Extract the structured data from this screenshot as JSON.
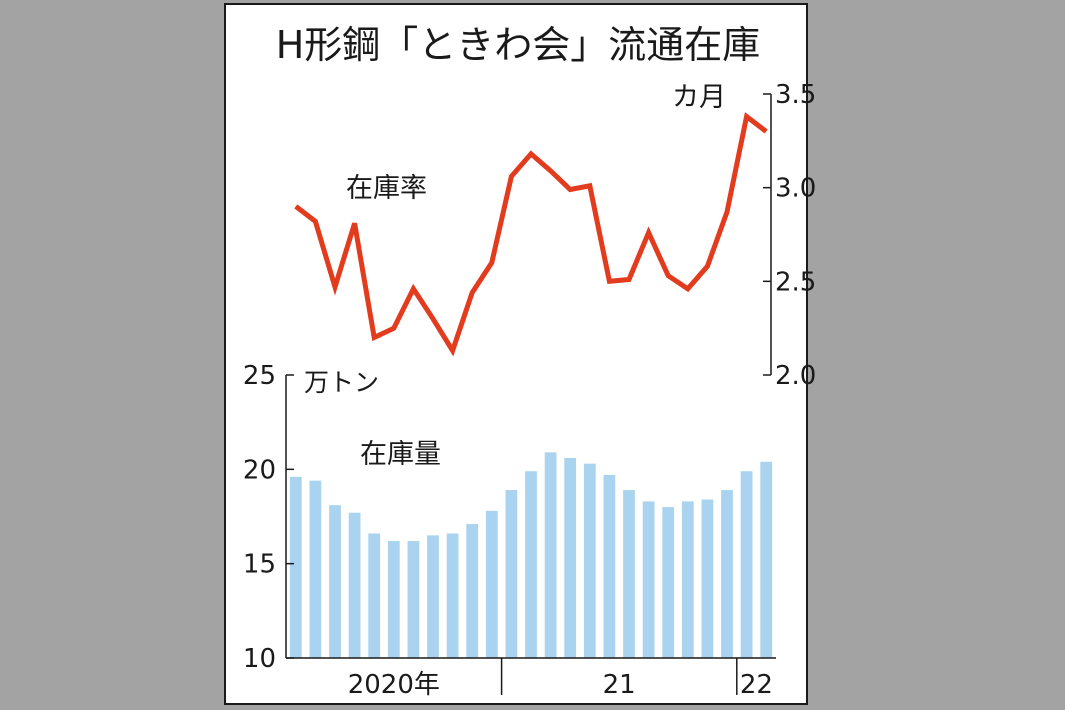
{
  "chart_data": {
    "type": "bar+line",
    "title": "H形鋼「ときわ会」流通在庫",
    "x_labels": [
      "2020年",
      "21",
      "22"
    ],
    "ratio": {
      "name": "在庫率",
      "unit": "カ月",
      "ylim": [
        2.0,
        3.5
      ],
      "ticks": [
        "3.5",
        "3.0",
        "2.5",
        "2.0"
      ],
      "values": [
        2.9,
        2.82,
        2.47,
        2.81,
        2.2,
        2.25,
        2.46,
        2.3,
        2.13,
        2.44,
        2.6,
        3.06,
        3.18,
        3.09,
        2.99,
        3.01,
        2.5,
        2.51,
        2.76,
        2.53,
        2.46,
        2.58,
        2.87,
        3.38,
        3.3
      ]
    },
    "inventory": {
      "name": "在庫量",
      "unit": "万トン",
      "ylim": [
        10,
        25
      ],
      "ticks": [
        "25",
        "20",
        "15",
        "10"
      ],
      "values": [
        19.6,
        19.4,
        18.1,
        17.7,
        16.6,
        16.2,
        16.2,
        16.5,
        16.6,
        17.1,
        17.8,
        18.9,
        19.9,
        20.9,
        20.6,
        20.3,
        19.7,
        18.9,
        18.3,
        18.0,
        18.3,
        18.4,
        18.9,
        19.9,
        20.4
      ]
    },
    "colors": {
      "line": "#e23b1d",
      "bar": "#a9d3ee",
      "axis": "#1a1a1a"
    }
  }
}
